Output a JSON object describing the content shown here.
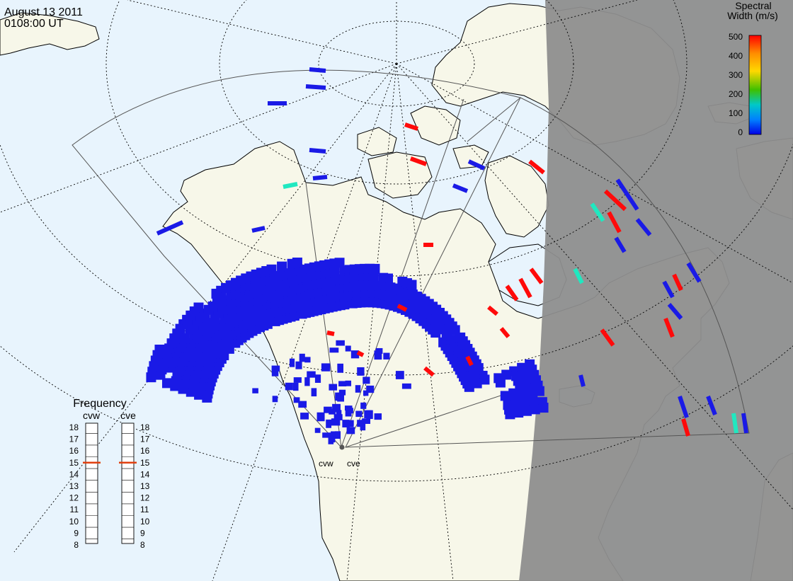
{
  "header": {
    "date": "August  13 2011",
    "time": "0108:00 UT"
  },
  "colorbar": {
    "title_line1": "Spectral",
    "title_line2": "Width (m/s)",
    "ticks": [
      "500",
      "400",
      "300",
      "200",
      "100",
      "0"
    ],
    "colors": [
      "#ff0000",
      "#ff8c00",
      "#ffd800",
      "#3ec000",
      "#00c8c8",
      "#0080ff",
      "#0000e6"
    ]
  },
  "frequency": {
    "title": "Frequency",
    "radars": [
      "cvw",
      "cve"
    ],
    "ticks": [
      "18",
      "17",
      "16",
      "15",
      "14",
      "13",
      "12",
      "11",
      "10",
      "9",
      "8"
    ],
    "cvw_value_mhz": 15,
    "cve_value_mhz": 15
  },
  "radars": {
    "west_label": "cvw",
    "east_label": "cve"
  },
  "colors": {
    "ocean": "#e8f4fd",
    "land": "#f7f7e9",
    "night": "#8e8e8e",
    "scatter_blue": "#1a1ae6",
    "scatter_red": "#ff0a0a",
    "scatter_cyan": "#20e8c0"
  }
}
